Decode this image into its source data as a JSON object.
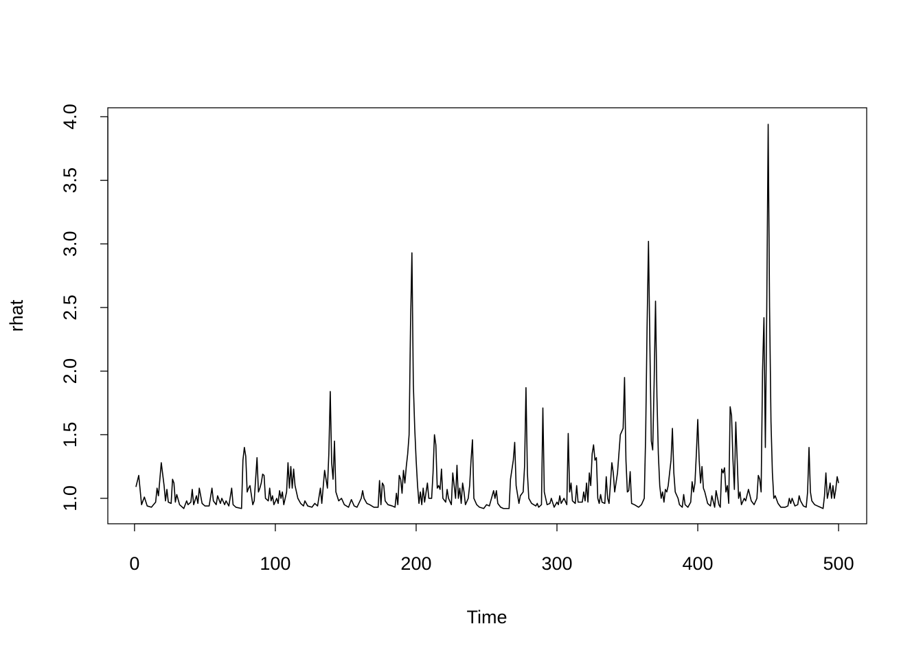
{
  "chart_data": {
    "type": "line",
    "x_label": "Time",
    "y_label": "rhat",
    "x": [
      1,
      3,
      5,
      7,
      9,
      12,
      15,
      16,
      17,
      19,
      21,
      22,
      23,
      24,
      26,
      27,
      28,
      29,
      30,
      32,
      35,
      37,
      38,
      40,
      41,
      42,
      44,
      45,
      46,
      48,
      50,
      53,
      55,
      56,
      58,
      59,
      61,
      62,
      64,
      65,
      67,
      69,
      70,
      72,
      76,
      77,
      78,
      79,
      80,
      81,
      82,
      84,
      85,
      87,
      88,
      89,
      90,
      91,
      92,
      93,
      95,
      96,
      97,
      98,
      99,
      101,
      102,
      103,
      104,
      105,
      106,
      108,
      109,
      110,
      111,
      112,
      113,
      114,
      116,
      118,
      120,
      121,
      123,
      126,
      128,
      130,
      132,
      133,
      135,
      136,
      137,
      138,
      139,
      140,
      141,
      142,
      143,
      145,
      147,
      149,
      152,
      154,
      156,
      158,
      161,
      162,
      163,
      165,
      167,
      170,
      173,
      174,
      175,
      176,
      177,
      178,
      180,
      183,
      185,
      186,
      187,
      188,
      189,
      190,
      191,
      192,
      193,
      194,
      195,
      196,
      197,
      198,
      199,
      200,
      201,
      202,
      203,
      204,
      205,
      206,
      208,
      209,
      211,
      212,
      213,
      214,
      215,
      216,
      217,
      218,
      219,
      221,
      222,
      223,
      225,
      226,
      227,
      228,
      229,
      230,
      231,
      232,
      233,
      234,
      235,
      237,
      238,
      239,
      240,
      241,
      243,
      245,
      248,
      250,
      252,
      255,
      256,
      257,
      258,
      260,
      262,
      266,
      267,
      269,
      270,
      271,
      273,
      274,
      276,
      277,
      278,
      279,
      280,
      282,
      285,
      286,
      287,
      289,
      290,
      291,
      293,
      295,
      296,
      298,
      300,
      301,
      302,
      303,
      305,
      307,
      308,
      309,
      310,
      311,
      313,
      314,
      315,
      318,
      319,
      320,
      321,
      322,
      323,
      324,
      325,
      326,
      327,
      328,
      329,
      330,
      331,
      332,
      334,
      335,
      336,
      337,
      339,
      340,
      341,
      343,
      345,
      347,
      348,
      349,
      350,
      351,
      352,
      353,
      355,
      358,
      360,
      362,
      363,
      364,
      365,
      366,
      367,
      368,
      369,
      370,
      371,
      372,
      373,
      374,
      375,
      376,
      377,
      378,
      379,
      380,
      381,
      382,
      383,
      384,
      386,
      387,
      389,
      390,
      391,
      393,
      395,
      396,
      397,
      398,
      399,
      400,
      401,
      402,
      403,
      404,
      405,
      407,
      409,
      410,
      412,
      413,
      415,
      416,
      417,
      418,
      419,
      420,
      421,
      422,
      423,
      424,
      425,
      426,
      427,
      428,
      429,
      430,
      431,
      433,
      434,
      436,
      438,
      440,
      442,
      443,
      444,
      445,
      446,
      447,
      448,
      449,
      450,
      451,
      452,
      453,
      454,
      455,
      457,
      459,
      462,
      464,
      465,
      466,
      467,
      469,
      471,
      472,
      473,
      475,
      477,
      478,
      479,
      480,
      481,
      483,
      485,
      487,
      489,
      490,
      491,
      492,
      493,
      494,
      495,
      496,
      497,
      498,
      499,
      500
    ],
    "values": [
      1.09,
      1.18,
      0.95,
      1.01,
      0.94,
      0.93,
      0.97,
      1.08,
      1.02,
      1.28,
      1.1,
      0.98,
      1.07,
      0.97,
      0.96,
      1.15,
      1.12,
      0.97,
      1.03,
      0.95,
      0.92,
      0.98,
      0.95,
      0.97,
      1.07,
      0.95,
      1.02,
      0.96,
      1.08,
      0.96,
      0.94,
      0.94,
      1.08,
      0.98,
      0.95,
      1.02,
      0.96,
      1.0,
      0.95,
      0.98,
      0.94,
      1.08,
      0.95,
      0.93,
      0.92,
      1.3,
      1.4,
      1.33,
      1.05,
      1.08,
      1.1,
      0.95,
      0.98,
      1.32,
      1.05,
      1.08,
      1.12,
      1.19,
      1.18,
      1.0,
      0.98,
      1.08,
      0.98,
      1.02,
      0.95,
      1.0,
      0.96,
      1.06,
      1.0,
      1.05,
      0.95,
      1.05,
      1.28,
      1.08,
      1.25,
      1.08,
      1.23,
      1.1,
      1.0,
      0.96,
      0.94,
      0.98,
      0.94,
      0.93,
      0.96,
      0.94,
      1.08,
      0.96,
      1.22,
      1.15,
      1.08,
      1.35,
      1.84,
      1.28,
      1.15,
      1.45,
      1.05,
      0.98,
      1.0,
      0.95,
      0.93,
      0.99,
      0.94,
      0.93,
      1.0,
      1.06,
      1.0,
      0.96,
      0.95,
      0.93,
      0.93,
      1.14,
      0.95,
      1.12,
      1.1,
      0.98,
      0.95,
      0.94,
      0.93,
      1.04,
      0.95,
      1.18,
      1.15,
      1.04,
      1.22,
      1.12,
      1.25,
      1.35,
      1.5,
      2.35,
      2.93,
      1.9,
      1.55,
      1.3,
      1.1,
      0.96,
      1.05,
      0.95,
      1.08,
      0.97,
      1.12,
      1.0,
      1.0,
      1.2,
      1.5,
      1.42,
      1.08,
      1.1,
      1.07,
      1.23,
      1.0,
      0.97,
      1.07,
      1.0,
      0.95,
      1.2,
      1.1,
      1.0,
      1.26,
      1.0,
      1.08,
      0.96,
      1.12,
      1.05,
      0.95,
      1.0,
      1.1,
      1.3,
      1.46,
      1.0,
      0.95,
      0.93,
      0.92,
      0.95,
      0.94,
      1.06,
      1.0,
      1.06,
      0.96,
      0.93,
      0.92,
      0.92,
      1.15,
      1.3,
      1.44,
      1.1,
      0.96,
      1.02,
      1.05,
      1.25,
      1.87,
      1.2,
      1.0,
      0.96,
      0.94,
      0.96,
      0.93,
      0.95,
      1.71,
      1.05,
      0.95,
      0.96,
      1.0,
      0.93,
      0.97,
      0.95,
      1.02,
      0.96,
      1.0,
      0.95,
      1.51,
      1.05,
      1.12,
      0.98,
      0.96,
      1.1,
      0.97,
      0.97,
      1.05,
      0.98,
      1.12,
      0.97,
      1.2,
      1.1,
      1.35,
      1.42,
      1.3,
      1.32,
      1.0,
      0.96,
      1.03,
      0.97,
      0.96,
      1.17,
      1.0,
      0.96,
      1.28,
      1.2,
      1.05,
      1.2,
      1.5,
      1.55,
      1.95,
      1.3,
      1.05,
      1.06,
      1.21,
      0.96,
      0.95,
      0.93,
      0.95,
      1.0,
      1.5,
      2.35,
      3.02,
      2.2,
      1.45,
      1.38,
      1.9,
      2.55,
      1.8,
      1.35,
      1.1,
      1.0,
      1.05,
      0.97,
      1.07,
      1.05,
      1.1,
      1.2,
      1.3,
      1.55,
      1.2,
      1.05,
      1.0,
      0.95,
      0.93,
      1.03,
      0.95,
      0.93,
      0.97,
      1.13,
      1.05,
      1.12,
      1.35,
      1.62,
      1.3,
      1.12,
      1.25,
      1.08,
      1.05,
      0.96,
      0.94,
      1.02,
      0.93,
      1.06,
      0.95,
      0.93,
      1.23,
      1.2,
      1.24,
      1.05,
      1.1,
      0.96,
      1.72,
      1.65,
      1.3,
      1.07,
      1.6,
      1.3,
      1.0,
      1.05,
      0.95,
      1.0,
      0.98,
      1.07,
      0.98,
      0.95,
      1.0,
      1.18,
      1.15,
      1.05,
      2.0,
      2.42,
      1.4,
      2.5,
      3.94,
      2.5,
      1.6,
      1.2,
      1.0,
      1.02,
      0.96,
      0.93,
      0.93,
      0.94,
      1.0,
      0.96,
      1.0,
      0.94,
      0.95,
      1.02,
      0.98,
      0.94,
      0.93,
      1.05,
      1.4,
      1.05,
      0.98,
      0.95,
      0.94,
      0.93,
      0.92,
      1.02,
      1.2,
      1.0,
      1.05,
      1.12,
      1.0,
      1.1,
      1.0,
      1.07,
      1.17,
      1.12
    ],
    "color": "#000000",
    "xlim": [
      -18.96,
      519.96
    ],
    "xticks": [
      0,
      100,
      200,
      300,
      400,
      500
    ],
    "ylim": [
      0.8,
      4.07
    ],
    "yticks": [
      {
        "value": 1,
        "label": "1.0"
      },
      {
        "value": 1.5,
        "label": "1.5"
      },
      {
        "value": 2,
        "label": "2.0"
      },
      {
        "value": 2.5,
        "label": "2.5"
      },
      {
        "value": 3,
        "label": "3.0"
      },
      {
        "value": 3.5,
        "label": "3.5"
      },
      {
        "value": 4,
        "label": "4.0"
      }
    ],
    "grid": false
  }
}
